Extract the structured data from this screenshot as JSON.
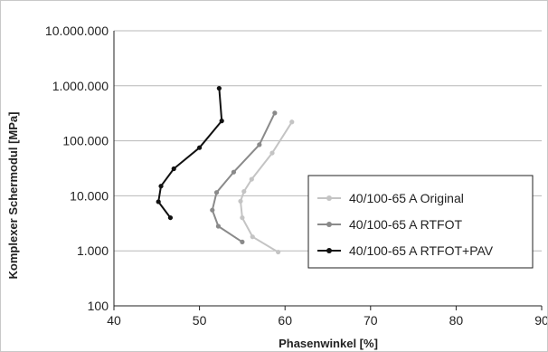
{
  "chart_data": {
    "type": "line",
    "title": "",
    "xlabel": "Phasenwinkel [%]",
    "ylabel": "Komplexer Schermodul [MPa]",
    "xlim": [
      40,
      90
    ],
    "ylim": [
      100,
      10000000
    ],
    "y_scale": "log",
    "x_ticks": [
      40,
      50,
      60,
      70,
      80,
      90
    ],
    "x_tick_labels": [
      "40",
      "50",
      "60",
      "70",
      "80",
      "90"
    ],
    "y_ticks": [
      100,
      1000,
      10000,
      100000,
      1000000,
      10000000
    ],
    "y_tick_labels": [
      "100",
      "1.000",
      "10.000",
      "100.000",
      "1.000.000",
      "10.000.000"
    ],
    "grid": "horizontal",
    "legend_position": "right",
    "series": [
      {
        "name": "40/100-65 A Original",
        "color": "#c4c4c4",
        "x": [
          59.2,
          56.2,
          55.0,
          54.8,
          55.2,
          56.1,
          58.5,
          60.8
        ],
        "y": [
          950,
          1800,
          4000,
          8000,
          12000,
          20000,
          60000,
          220000
        ]
      },
      {
        "name": "40/100-65 A RTFOT",
        "color": "#8a8a8a",
        "x": [
          55.0,
          52.2,
          51.5,
          52.0,
          54.0,
          57.0,
          58.8
        ],
        "y": [
          1450,
          2800,
          5500,
          11500,
          27000,
          85000,
          320000
        ]
      },
      {
        "name": "40/100-65 A RTFOT+PAV",
        "color": "#111111",
        "x": [
          46.6,
          45.2,
          45.5,
          47.0,
          50.0,
          52.6,
          52.3
        ],
        "y": [
          4000,
          7800,
          15000,
          31000,
          75000,
          230000,
          900000
        ]
      }
    ]
  }
}
